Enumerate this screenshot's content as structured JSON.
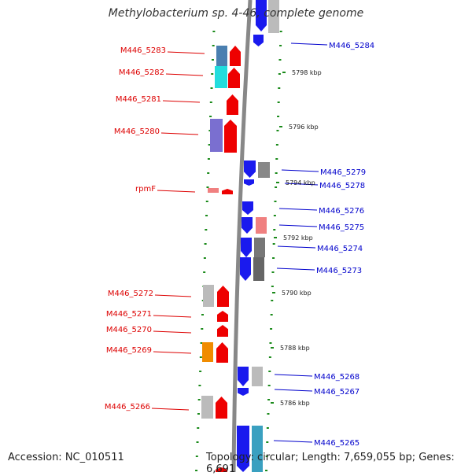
{
  "title": "Methylobacterium sp. 4-46, complete genome",
  "accession_text": "Accession: NC_010511",
  "topology_text": "Topology: circular; Length: 7,659,055 bp; Genes: 6,691",
  "colors": {
    "left_label": "#dd0000",
    "right_label": "#0000cc",
    "tick": "#1a8a1a",
    "backbone": "#888888"
  },
  "scale_labels": [
    "5798 kbp",
    "5796 kbp",
    "5794 kbp",
    "5792 kbp",
    "5790 kbp",
    "5788 kbp",
    "5786 kbp"
  ],
  "left_genes": [
    "M446_5283",
    "M446_5282",
    "M446_5281",
    "M446_5280",
    "rpmF",
    "M446_5272",
    "M446_5271",
    "M446_5270",
    "M446_5269",
    "M446_5266"
  ],
  "right_genes": [
    "M446_5284",
    "M446_5279",
    "M446_5278",
    "M446_5276",
    "M446_5275",
    "M446_5274",
    "M446_5273",
    "M446_5268",
    "M446_5267",
    "M446_5265"
  ]
}
